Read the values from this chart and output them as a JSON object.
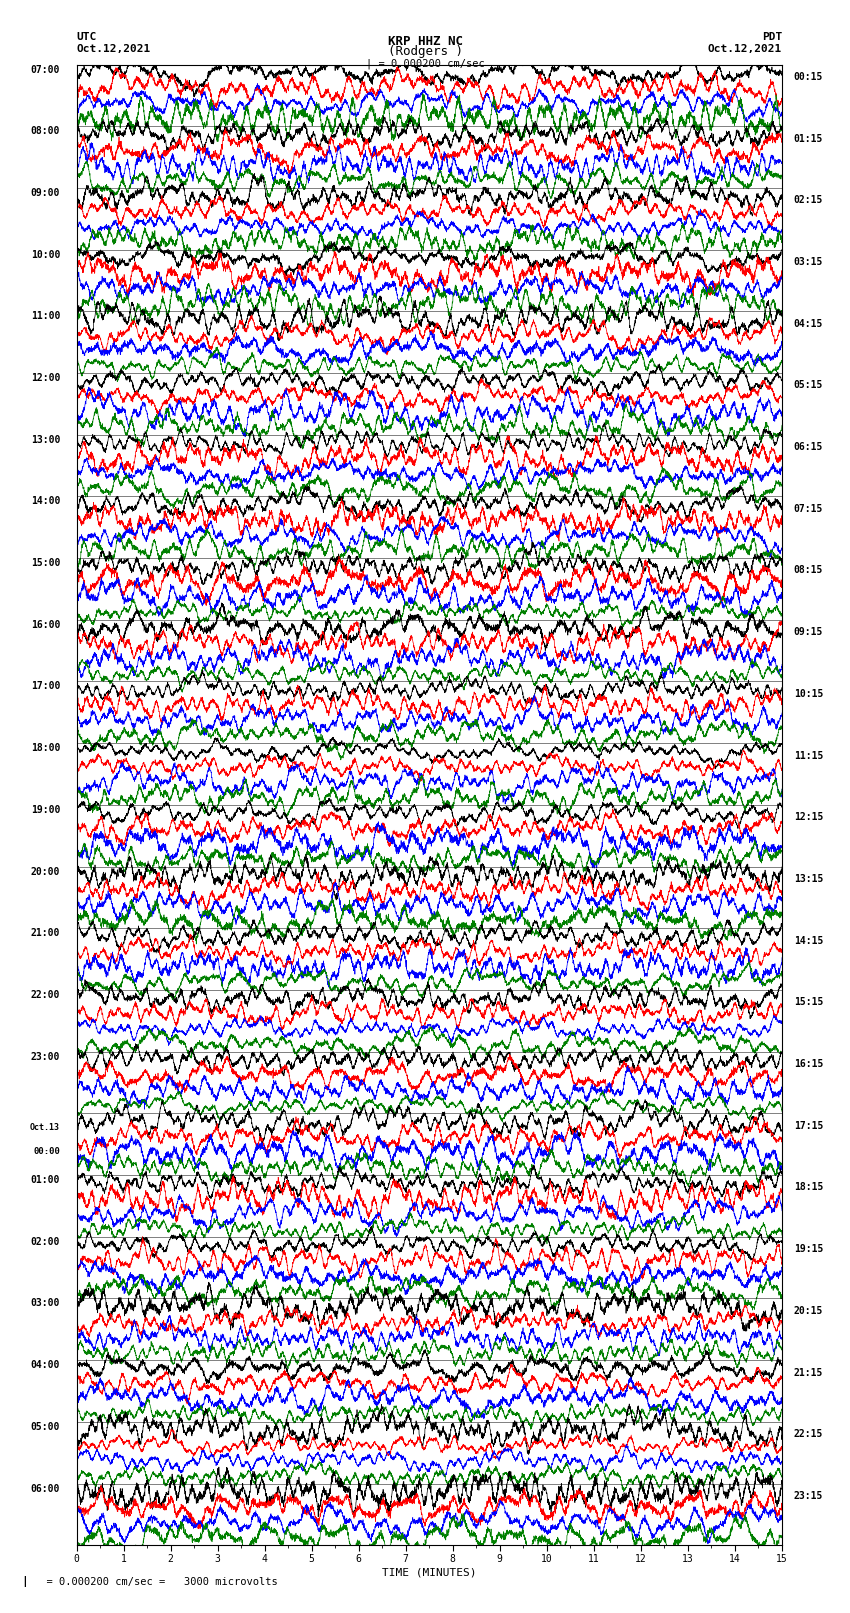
{
  "title_line1": "KRP HHZ NC",
  "title_line2": "(Rodgers )",
  "scale_bar": "| = 0.000200 cm/sec",
  "left_label_top": "UTC",
  "left_label_date": "Oct.12,2021",
  "right_label_top": "PDT",
  "right_label_date": "Oct.12,2021",
  "xlabel": "TIME (MINUTES)",
  "footnote": "= 0.000200 cm/sec =   3000 microvolts",
  "left_times": [
    "07:00",
    "08:00",
    "09:00",
    "10:00",
    "11:00",
    "12:00",
    "13:00",
    "14:00",
    "15:00",
    "16:00",
    "17:00",
    "18:00",
    "19:00",
    "20:00",
    "21:00",
    "22:00",
    "23:00",
    "Oct.13\n00:00",
    "01:00",
    "02:00",
    "03:00",
    "04:00",
    "05:00",
    "06:00"
  ],
  "right_times": [
    "00:15",
    "01:15",
    "02:15",
    "03:15",
    "04:15",
    "05:15",
    "06:15",
    "07:15",
    "08:15",
    "09:15",
    "10:15",
    "11:15",
    "12:15",
    "13:15",
    "14:15",
    "15:15",
    "16:15",
    "17:15",
    "18:15",
    "19:15",
    "20:15",
    "21:15",
    "22:15",
    "23:15"
  ],
  "colors_per_block": [
    "black",
    "red",
    "blue",
    "green"
  ],
  "n_hours": 24,
  "traces_per_hour": 4,
  "fig_width": 8.5,
  "fig_height": 16.13,
  "bg_color": "white",
  "trace_linewidth": 0.5,
  "amplitude_scale": 0.42,
  "n_pts": 4000
}
